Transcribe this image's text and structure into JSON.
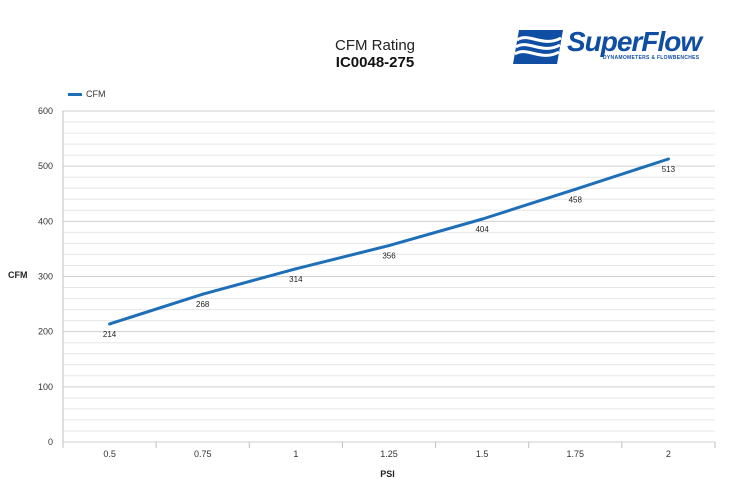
{
  "chart_data": {
    "type": "line",
    "title": "CFM Rating",
    "subtitle": "IC0048-275",
    "xlabel": "PSI",
    "ylabel": "CFM",
    "categories": [
      "0.5",
      "0.75",
      "1",
      "1.25",
      "1.5",
      "1.75",
      "2"
    ],
    "series": [
      {
        "name": "CFM",
        "values": [
          214,
          268,
          314,
          356,
          404,
          458,
          513
        ],
        "color": "#1f6fb8"
      }
    ],
    "ylim": [
      0,
      600
    ],
    "yticks": [
      0,
      100,
      200,
      300,
      400,
      500,
      600
    ],
    "grid": true,
    "legend_position": "top-left",
    "data_labels": true
  },
  "logo": {
    "name": "SuperFlow",
    "tagline": "DYNAMOMETERS & FLOWBENCHES",
    "color": "#0f4ea3"
  }
}
